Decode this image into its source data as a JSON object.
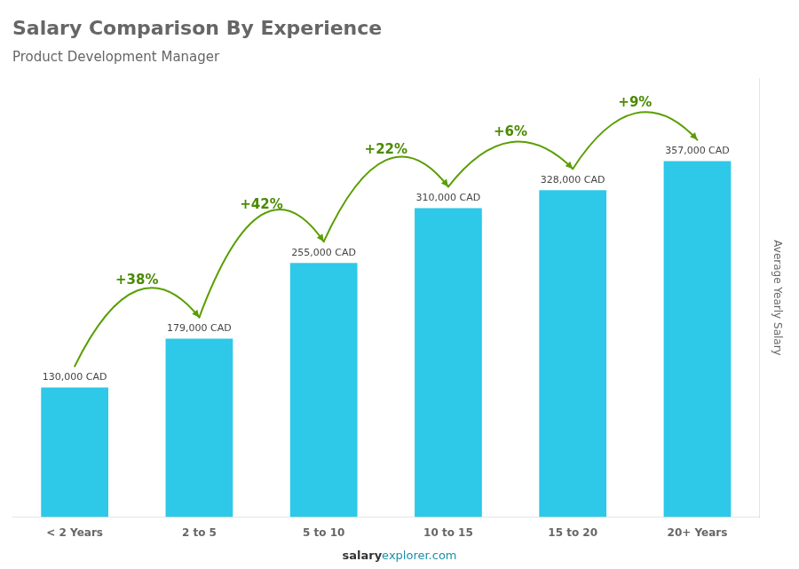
{
  "chart_data": {
    "type": "bar",
    "title": "Salary Comparison By Experience",
    "subtitle": "Product Development Manager",
    "categories": [
      "< 2 Years",
      "2 to 5",
      "5 to 10",
      "10 to 15",
      "15 to 20",
      "20+ Years"
    ],
    "values": [
      130000,
      179000,
      255000,
      310000,
      328000,
      357000
    ],
    "value_labels": [
      "130,000 CAD",
      "179,000 CAD",
      "255,000 CAD",
      "310,000 CAD",
      "328,000 CAD",
      "357,000 CAD"
    ],
    "data_labels": true,
    "color": "#2ec8e8",
    "ylabel": "Average Yearly Salary",
    "ylim": [
      0,
      440000
    ],
    "grid": false,
    "tick_labels": "x",
    "annotations": [
      "+38%",
      "+42%",
      "+22%",
      "+6%",
      "+9%"
    ],
    "footer": [
      "salary",
      "explorer.com"
    ]
  }
}
